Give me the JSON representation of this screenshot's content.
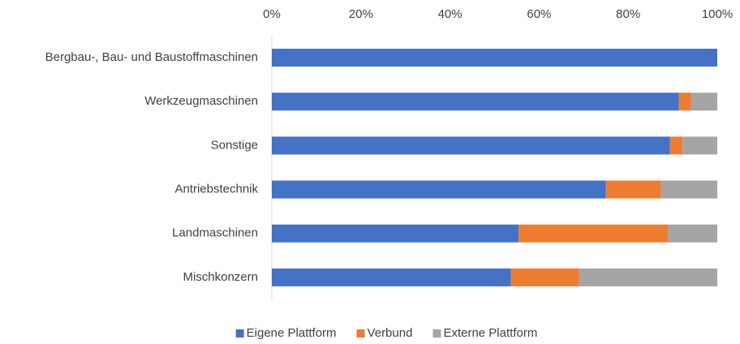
{
  "chart_data": {
    "type": "stacked_bar_horizontal",
    "categories": [
      "Bergbau-, Bau- und Baustoffmaschinen",
      "Werkzeugmaschinen",
      "Sonstige",
      "Antriebstechnik",
      "Landmaschinen",
      "Mischkonzern"
    ],
    "series": [
      {
        "name": "Eigene Plattform",
        "color": "#4472c4",
        "values": [
          100,
          91.4,
          89.4,
          75.0,
          55.4,
          53.7
        ]
      },
      {
        "name": "Verbund",
        "color": "#ed7d31",
        "values": [
          0,
          2.7,
          2.8,
          12.4,
          33.5,
          15.3
        ]
      },
      {
        "name": "Externe Plattform",
        "color": "#a5a5a5",
        "values": [
          0,
          5.9,
          7.8,
          12.6,
          11.1,
          31.0
        ]
      }
    ],
    "xlim": [
      0,
      100
    ],
    "xticks": [
      {
        "value": 0,
        "label": "0%"
      },
      {
        "value": 20,
        "label": "20%"
      },
      {
        "value": 40,
        "label": "40%"
      },
      {
        "value": 60,
        "label": "60%"
      },
      {
        "value": 80,
        "label": "80%"
      },
      {
        "value": 100,
        "label": "100%"
      }
    ],
    "grid": false,
    "legend": "bottom"
  }
}
